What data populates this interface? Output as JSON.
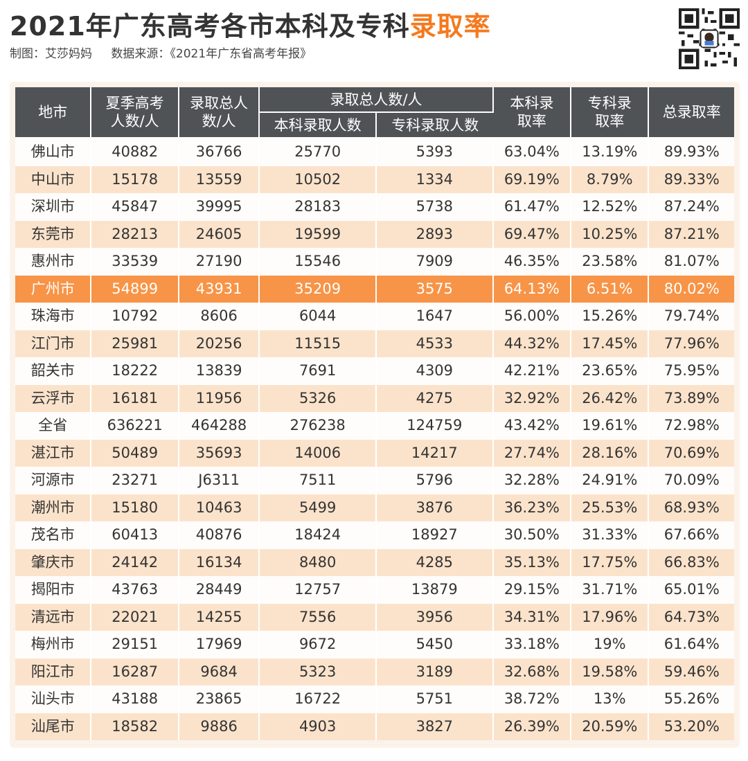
{
  "header": {
    "title_main": "2021年广东高考各市本科及专科",
    "title_accent": "录取率",
    "credit": "制图：艾莎妈妈",
    "source": "数据来源：《2021年广东省高考年报》"
  },
  "colors": {
    "accent": "#f47a1f",
    "header_bg": "#505356",
    "highlight_row": "#f79447",
    "stripe": "#fbe3cb"
  },
  "table": {
    "headers": {
      "city": "地市",
      "summer_exam": "夏季高考人数/人",
      "total_admitted": "录取总人数/人",
      "admitted_group": "录取总人数/人",
      "bachelor_admitted": "本科录取人数",
      "college_admitted": "专科录取人数",
      "bachelor_rate": "本科录取率",
      "college_rate": "专科录取率",
      "total_rate": "总录取率"
    },
    "highlight_city": "广州市",
    "rows": [
      [
        "佛山市",
        "40882",
        "36766",
        "25770",
        "5393",
        "63.04%",
        "13.19%",
        "89.93%"
      ],
      [
        "中山市",
        "15178",
        "13559",
        "10502",
        "1334",
        "69.19%",
        "8.79%",
        "89.33%"
      ],
      [
        "深圳市",
        "45847",
        "39995",
        "28183",
        "5738",
        "61.47%",
        "12.52%",
        "87.24%"
      ],
      [
        "东莞市",
        "28213",
        "24605",
        "19599",
        "2893",
        "69.47%",
        "10.25%",
        "87.21%"
      ],
      [
        "惠州市",
        "33539",
        "27190",
        "15546",
        "7909",
        "46.35%",
        "23.58%",
        "81.07%"
      ],
      [
        "广州市",
        "54899",
        "43931",
        "35209",
        "3575",
        "64.13%",
        "6.51%",
        "80.02%"
      ],
      [
        "珠海市",
        "10792",
        "8606",
        "6044",
        "1647",
        "56.00%",
        "15.26%",
        "79.74%"
      ],
      [
        "江门市",
        "25981",
        "20256",
        "11515",
        "4533",
        "44.32%",
        "17.45%",
        "77.96%"
      ],
      [
        "韶关市",
        "18222",
        "13839",
        "7691",
        "4309",
        "42.21%",
        "23.65%",
        "75.95%"
      ],
      [
        "云浮市",
        "16181",
        "11956",
        "5326",
        "4275",
        "32.92%",
        "26.42%",
        "73.89%"
      ],
      [
        "全省",
        "636221",
        "464288",
        "276238",
        "124759",
        "43.42%",
        "19.61%",
        "72.98%"
      ],
      [
        "湛江市",
        "50489",
        "35693",
        "14006",
        "14217",
        "27.74%",
        "28.16%",
        "70.69%"
      ],
      [
        "河源市",
        "23271",
        "J6311",
        "7511",
        "5796",
        "32.28%",
        "24.91%",
        "70.09%"
      ],
      [
        "潮州市",
        "15180",
        "10463",
        "5499",
        "3876",
        "36.23%",
        "25.53%",
        "68.93%"
      ],
      [
        "茂名市",
        "60413",
        "40876",
        "18424",
        "18927",
        "30.50%",
        "31.33%",
        "67.66%"
      ],
      [
        "肇庆市",
        "24142",
        "16134",
        "8480",
        "4285",
        "35.13%",
        "17.75%",
        "66.83%"
      ],
      [
        "揭阳市",
        "43763",
        "28449",
        "12757",
        "13879",
        "29.15%",
        "31.71%",
        "65.01%"
      ],
      [
        "清远市",
        "22021",
        "14255",
        "7556",
        "3956",
        "34.31%",
        "17.96%",
        "64.73%"
      ],
      [
        "梅州市",
        "29151",
        "17969",
        "9672",
        "5450",
        "33.18%",
        "19%",
        "61.64%"
      ],
      [
        "阳江市",
        "16287",
        "9684",
        "5323",
        "3189",
        "32.68%",
        "19.58%",
        "59.46%"
      ],
      [
        "汕头市",
        "43188",
        "23865",
        "16722",
        "5751",
        "38.72%",
        "13%",
        "55.26%"
      ],
      [
        "汕尾市",
        "18582",
        "9886",
        "4903",
        "3827",
        "26.39%",
        "20.59%",
        "53.20%"
      ]
    ]
  }
}
